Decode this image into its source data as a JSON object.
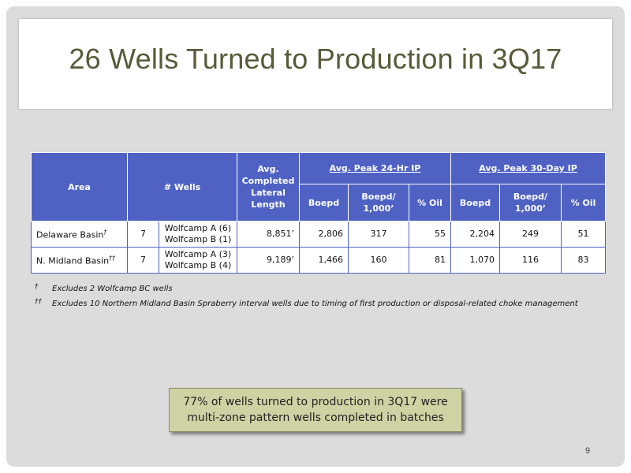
{
  "slide": {
    "title": "26 Wells Turned to Production in 3Q17",
    "page_number": "9"
  },
  "table": {
    "headers": {
      "area": "Area",
      "wells": "# Wells",
      "lateral": [
        "Avg.",
        "Completed",
        "Lateral",
        "Length"
      ],
      "peak24": "Avg. Peak 24-Hr IP",
      "peak30": "Avg. Peak 30-Day IP",
      "boepd": "Boepd",
      "boepd_per_1000": [
        "Boepd/",
        "1,000’"
      ],
      "pct_oil": "% Oil"
    },
    "rows": [
      {
        "area": "Delaware Basin",
        "mark": "†",
        "wells": "7",
        "zones": [
          "Wolfcamp A (6)",
          "Wolfcamp B (1)"
        ],
        "lateral": "8,851’",
        "ip24_boepd": "2,806",
        "ip24_boepd_1000": "317",
        "ip24_oil": "55",
        "ip30_boepd": "2,204",
        "ip30_boepd_1000": "249",
        "ip30_oil": "51"
      },
      {
        "area": "N. Midland Basin",
        "mark": "††",
        "wells": "7",
        "zones": [
          "Wolfcamp A (3)",
          "Wolfcamp B (4)"
        ],
        "lateral": "9,189’",
        "ip24_boepd": "1,466",
        "ip24_boepd_1000": "160",
        "ip24_oil": "81",
        "ip30_boepd": "1,070",
        "ip30_boepd_1000": "116",
        "ip30_oil": "83"
      }
    ]
  },
  "footnotes": [
    {
      "mark": "†",
      "text": "Excludes 2 Wolfcamp BC wells"
    },
    {
      "mark": "††",
      "text": "Excludes 10 Northern Midland Basin Spraberry interval wells due to timing of first production or disposal-related choke management"
    }
  ],
  "callout": {
    "line1": "77% of wells turned to production in 3Q17 were",
    "line2": "multi-zone pattern wells completed in batches"
  },
  "colors": {
    "header_blue": "#4f62c4",
    "title_olive": "#5a5a3a",
    "callout_fill": "#cfd2a3",
    "slide_gray": "#dcdcdc"
  }
}
